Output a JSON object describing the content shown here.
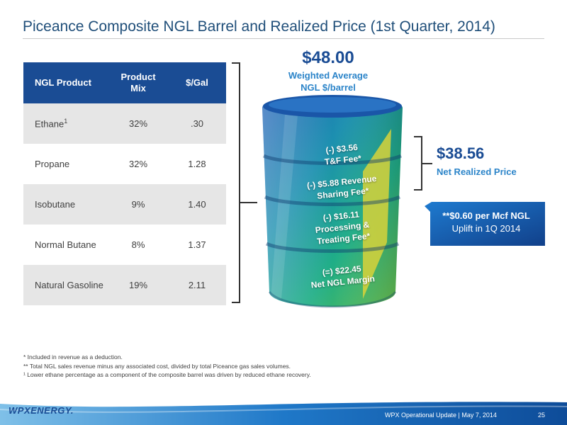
{
  "title": "Piceance Composite NGL Barrel and Realized Price (1st Quarter, 2014)",
  "table": {
    "headers": {
      "product": "NGL Product",
      "mix": "Product Mix",
      "price": "$/Gal"
    },
    "rows": [
      {
        "product": "Ethane",
        "sup": "1",
        "mix": "32%",
        "price": ".30"
      },
      {
        "product": "Propane",
        "sup": "",
        "mix": "32%",
        "price": "1.28"
      },
      {
        "product": "Isobutane",
        "sup": "",
        "mix": "9%",
        "price": "1.40"
      },
      {
        "product": "Normal Butane",
        "sup": "",
        "mix": "8%",
        "price": "1.37"
      },
      {
        "product": "Natural Gasoline",
        "sup": "",
        "mix": "19%",
        "price": "2.11"
      }
    ]
  },
  "headline": {
    "price": "$48.00",
    "line1": "Weighted Average",
    "line2": "NGL $/barrel"
  },
  "net": {
    "price": "$38.56",
    "label": "Net Realized Price"
  },
  "callout": {
    "line1": "**$0.60 per Mcf NGL",
    "line2": "Uplift in 1Q 2014"
  },
  "barrel": {
    "bands": [
      {
        "line1": "(-) $3.56",
        "line2": "T&F Fee*"
      },
      {
        "line1": "(-) $5.88 Revenue",
        "line2": "Sharing Fee*"
      },
      {
        "line1": "(-) $16.11",
        "line2": "Processing &",
        "line3": "Treating Fee*"
      },
      {
        "line1": "(=) $22.45",
        "line2": "Net NGL Margin"
      }
    ],
    "colors": {
      "top": "#2a73c4",
      "mid": "#1fa38f",
      "bottom": "#7cc242",
      "accent": "#d8d23a"
    }
  },
  "footnotes": [
    "* Included in revenue as a deduction.",
    "** Total NGL sales revenue minus any associated cost, divided by total Piceance gas sales volumes.",
    "¹ Lower ethane percentage as a component of the composite barrel was driven by reduced ethane recovery."
  ],
  "footer": {
    "logo": "WPXENERGY.",
    "text": "WPX Operational Update  |  May 7, 2014",
    "page": "25"
  }
}
